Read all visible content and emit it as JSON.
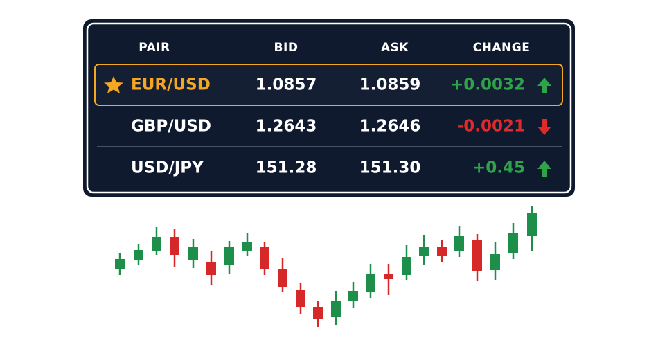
{
  "table": {
    "header": [
      "PAIR",
      "BID",
      "ASK",
      "CHANGE"
    ],
    "rows": [
      [
        "EUR/USD",
        "1.0857",
        "1.0859",
        "+0.0032"
      ],
      [
        "GBP/USD",
        "1.2643",
        "1.2646",
        "-0.0021"
      ],
      [
        "USD/JPY",
        "151.28",
        "151.30",
        "+0.45"
      ]
    ]
  }
}
